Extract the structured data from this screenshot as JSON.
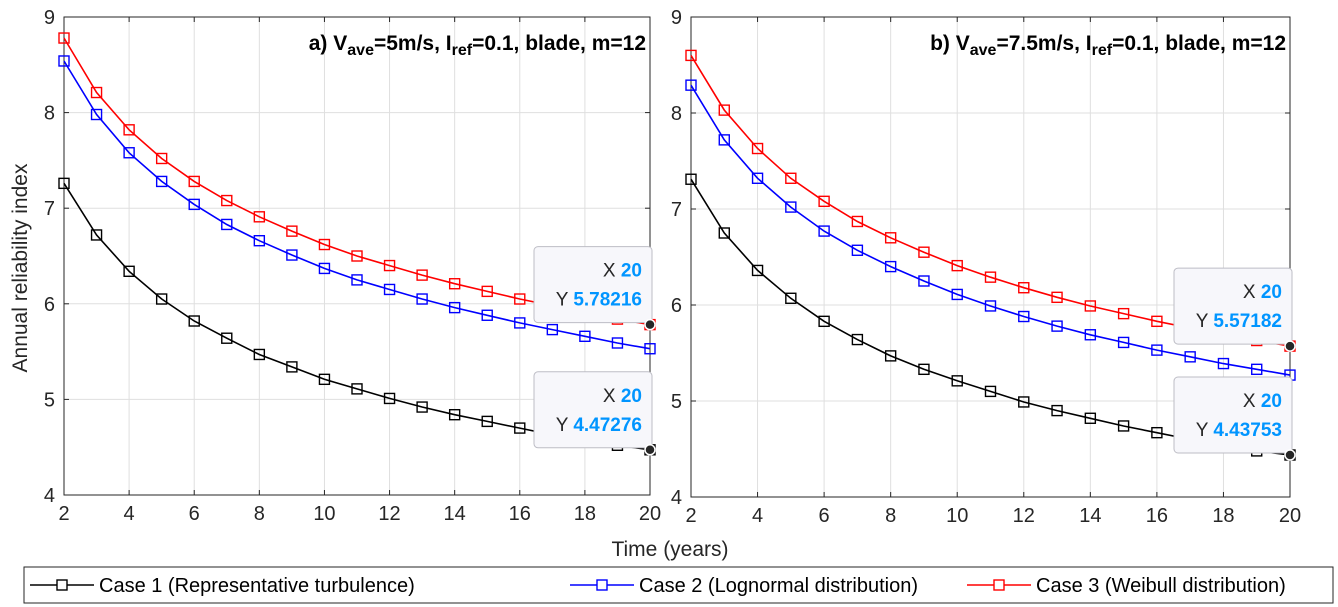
{
  "chart_data": [
    {
      "type": "line",
      "title_parts": [
        "a) V",
        "ave",
        "=5m/s, I",
        "ref",
        "=0.1, blade, m=12"
      ],
      "xlabel": "",
      "ylabel": "Annual reliability index",
      "xlim": [
        2,
        20
      ],
      "ylim": [
        4,
        9
      ],
      "xticks": [
        "2",
        "4",
        "6",
        "8",
        "10",
        "12",
        "14",
        "16",
        "18",
        "20"
      ],
      "yticks": [
        "4",
        "5",
        "6",
        "7",
        "8",
        "9"
      ],
      "grid": true,
      "x": [
        2,
        3,
        4,
        5,
        6,
        7,
        8,
        9,
        10,
        11,
        12,
        13,
        14,
        15,
        16,
        17,
        18,
        19,
        20
      ],
      "series": [
        {
          "name": "Case 1 (Representative turbulence)",
          "color": "#000000",
          "values": [
            7.26,
            6.72,
            6.34,
            6.05,
            5.82,
            5.64,
            5.47,
            5.34,
            5.21,
            5.11,
            5.01,
            4.92,
            4.84,
            4.77,
            4.7,
            4.63,
            4.57,
            4.52,
            4.47276
          ]
        },
        {
          "name": "Case 2 (Lognormal distribution)",
          "color": "#0000ff",
          "values": [
            8.54,
            7.98,
            7.58,
            7.28,
            7.04,
            6.83,
            6.66,
            6.51,
            6.37,
            6.25,
            6.15,
            6.05,
            5.96,
            5.88,
            5.8,
            5.73,
            5.66,
            5.59,
            5.53
          ]
        },
        {
          "name": "Case 3 (Weibull distribution)",
          "color": "#ff0000",
          "values": [
            8.78,
            8.21,
            7.82,
            7.52,
            7.28,
            7.08,
            6.91,
            6.76,
            6.62,
            6.5,
            6.4,
            6.3,
            6.21,
            6.13,
            6.05,
            5.98,
            5.9,
            5.84,
            5.78216
          ]
        }
      ],
      "datatips": [
        {
          "x_label": "X",
          "x_value": "20",
          "y_label": "Y",
          "y_value": "5.78216",
          "x": 20,
          "y": 5.78216
        },
        {
          "x_label": "X",
          "x_value": "20",
          "y_label": "Y",
          "y_value": "4.47276",
          "x": 20,
          "y": 4.47276
        }
      ]
    },
    {
      "type": "line",
      "title_parts": [
        "b) V",
        "ave",
        "=7.5m/s, I",
        "ref",
        "=0.1, blade, m=12"
      ],
      "xlabel": "",
      "ylabel": "",
      "xlim": [
        2,
        20
      ],
      "ylim": [
        4,
        9
      ],
      "xticks": [
        "2",
        "4",
        "6",
        "8",
        "10",
        "12",
        "14",
        "16",
        "18",
        "20"
      ],
      "yticks": [
        "4",
        "5",
        "6",
        "7",
        "8",
        "9"
      ],
      "grid": true,
      "x": [
        2,
        3,
        4,
        5,
        6,
        7,
        8,
        9,
        10,
        11,
        12,
        13,
        14,
        15,
        16,
        17,
        18,
        19,
        20
      ],
      "series": [
        {
          "name": "Case 1 (Representative turbulence)",
          "color": "#000000",
          "values": [
            7.31,
            6.75,
            6.36,
            6.07,
            5.83,
            5.64,
            5.47,
            5.33,
            5.21,
            5.1,
            4.99,
            4.9,
            4.82,
            4.74,
            4.67,
            4.6,
            4.54,
            4.48,
            4.43753
          ]
        },
        {
          "name": "Case 2 (Lognormal distribution)",
          "color": "#0000ff",
          "values": [
            8.29,
            7.72,
            7.32,
            7.02,
            6.77,
            6.57,
            6.4,
            6.25,
            6.11,
            5.99,
            5.88,
            5.78,
            5.69,
            5.61,
            5.53,
            5.46,
            5.39,
            5.33,
            5.27
          ]
        },
        {
          "name": "Case 3 (Weibull distribution)",
          "color": "#ff0000",
          "values": [
            8.6,
            8.03,
            7.63,
            7.32,
            7.08,
            6.87,
            6.7,
            6.55,
            6.41,
            6.29,
            6.18,
            6.08,
            5.99,
            5.91,
            5.83,
            5.76,
            5.69,
            5.63,
            5.57182
          ]
        }
      ],
      "datatips": [
        {
          "x_label": "X",
          "x_value": "20",
          "y_label": "Y",
          "y_value": "5.57182",
          "x": 20,
          "y": 5.57182
        },
        {
          "x_label": "X",
          "x_value": "20",
          "y_label": "Y",
          "y_value": "4.43753",
          "x": 20,
          "y": 4.43753
        }
      ]
    }
  ],
  "shared_xlabel": "Time (years)",
  "legend": {
    "placement": "bottom",
    "entries": [
      {
        "label": "Case 1 (Representative turbulence)",
        "color": "#000000"
      },
      {
        "label": "Case 2 (Lognormal distribution)",
        "color": "#0000ff"
      },
      {
        "label": "Case 3 (Weibull distribution)",
        "color": "#ff0000"
      }
    ]
  },
  "colors": {
    "grid": "#dfdfdf",
    "axis": "#262626",
    "datatip_value": "#0095ff",
    "datatip_bg": "#f7f7fb",
    "datatip_border": "#bdbdc5"
  }
}
